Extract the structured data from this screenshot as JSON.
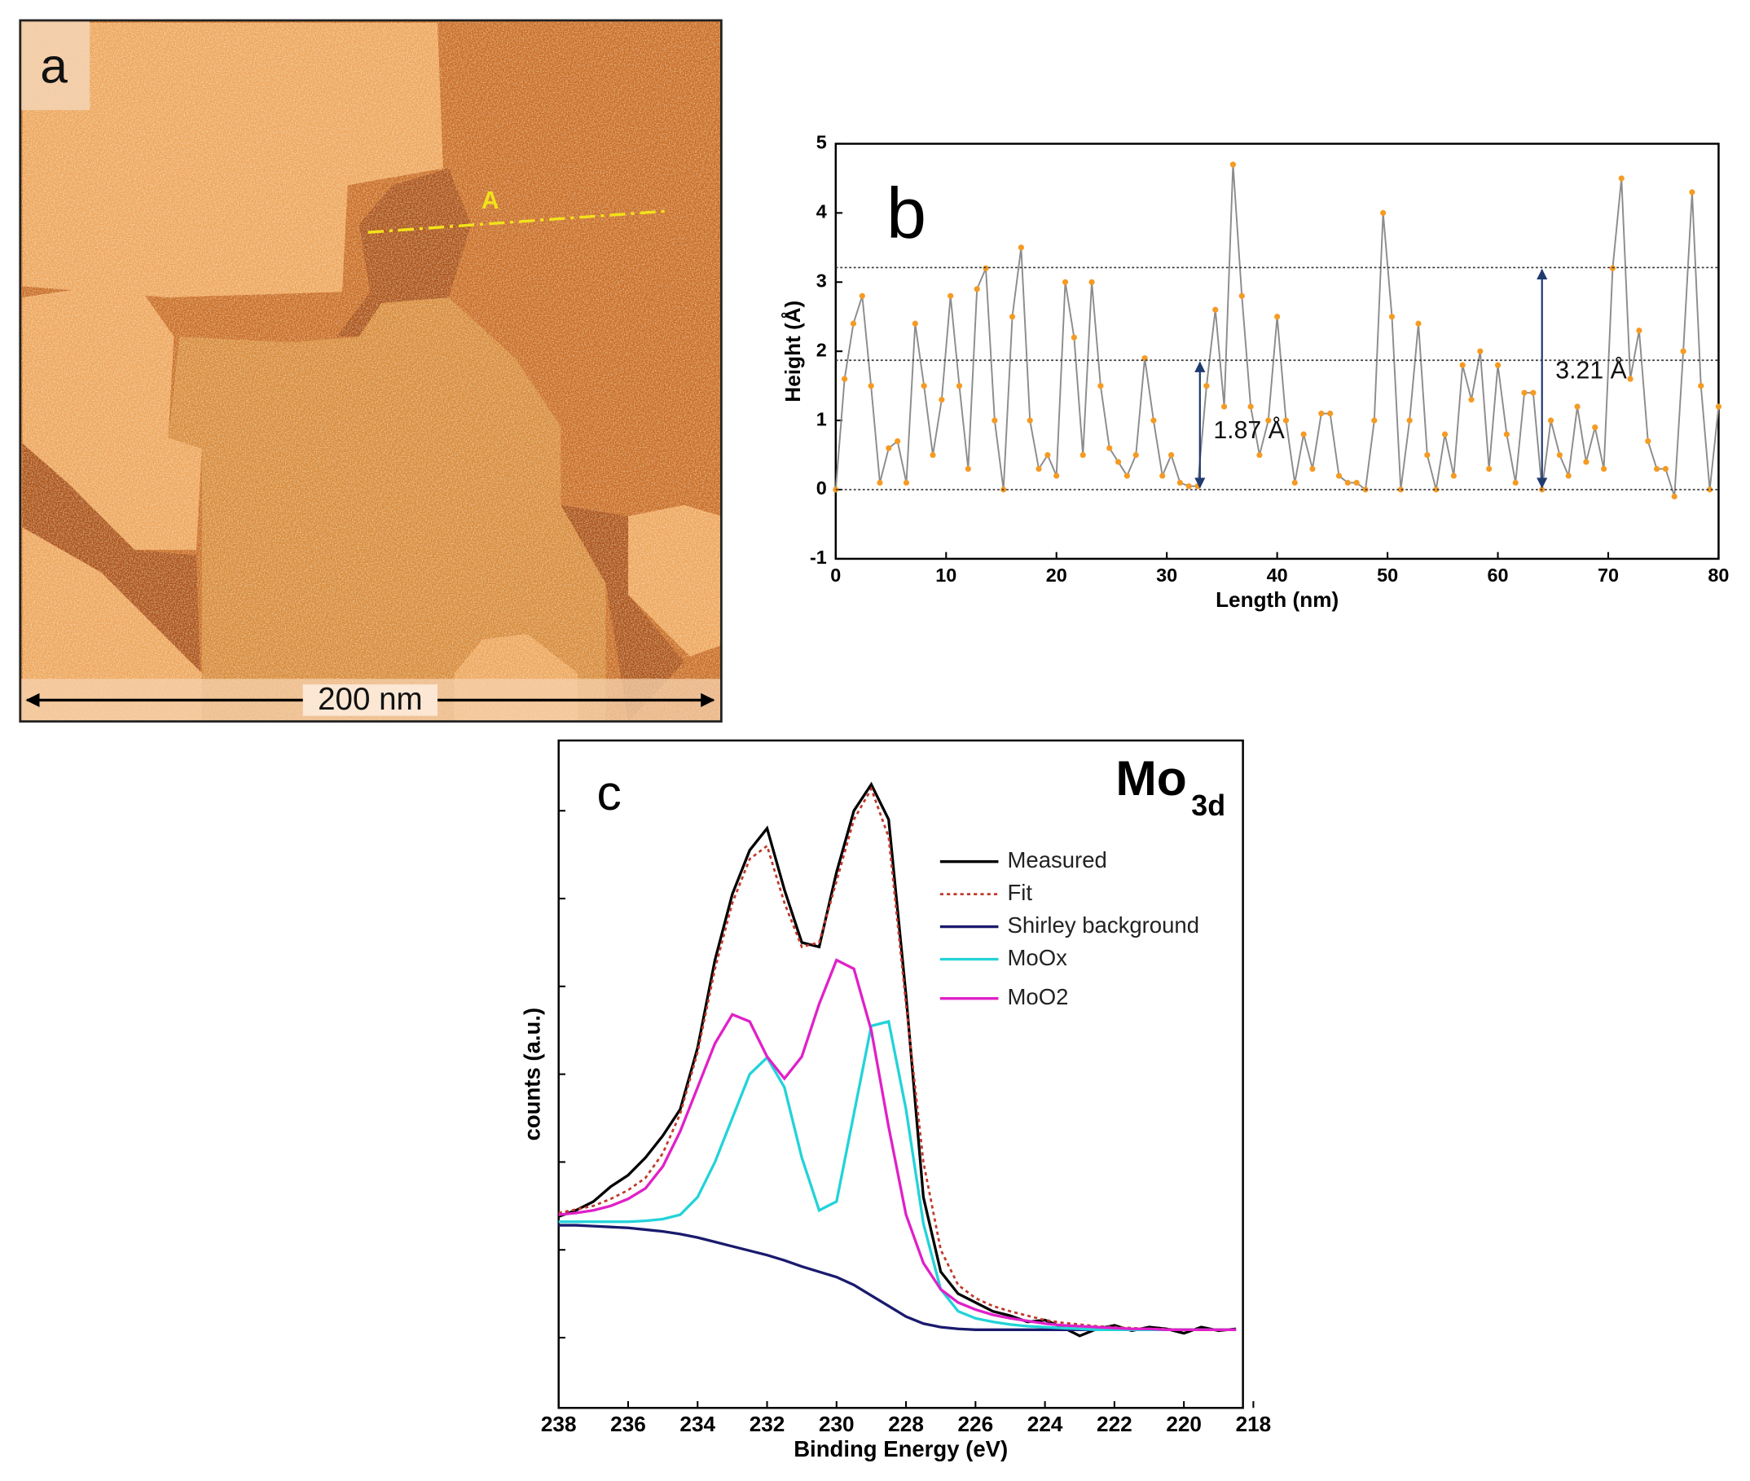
{
  "panel_a": {
    "label": "a",
    "scale_bar": "200 nm",
    "line_label": "A"
  },
  "chart_data": [
    {
      "type": "line",
      "title": "b",
      "xlabel": "Length (nm)",
      "ylabel": "Height (Å)",
      "x": [
        0,
        0.8,
        1.6,
        2.4,
        3.2,
        4,
        4.8,
        5.6,
        6.4,
        7.2,
        8,
        8.8,
        9.6,
        10.4,
        11.2,
        12,
        12.8,
        13.6,
        14.4,
        15.2,
        16,
        16.8,
        17.6,
        18.4,
        19.2,
        20,
        20.8,
        21.6,
        22.4,
        23.2,
        24,
        24.8,
        25.6,
        26.4,
        27.2,
        28,
        28.8,
        29.6,
        30.4,
        31.2,
        32,
        32.8,
        33.6,
        34.4,
        35.2,
        36,
        36.8,
        37.6,
        38.4,
        39.2,
        40,
        40.8,
        41.6,
        42.4,
        43.2,
        44,
        44.8,
        45.6,
        46.4,
        47.2,
        48,
        48.8,
        49.6,
        50.4,
        51.2,
        52,
        52.8,
        53.6,
        54.4,
        55.2,
        56,
        56.8,
        57.6,
        58.4,
        59.2,
        60,
        60.8,
        61.6,
        62.4,
        63.2,
        64,
        64.8,
        65.6,
        66.4,
        67.2,
        68,
        68.8,
        69.6,
        70.4,
        71.2,
        72,
        72.8,
        73.6,
        74.4,
        75.2,
        76,
        76.8,
        77.6,
        78.4,
        79.2,
        80
      ],
      "series": [
        {
          "color": "#8c8c8c",
          "marker_color": "#f59a23",
          "markers": true,
          "values": [
            0,
            1.6,
            2.4,
            2.8,
            1.5,
            0.1,
            0.6,
            0.7,
            0.1,
            2.4,
            1.5,
            0.5,
            1.3,
            2.8,
            1.5,
            0.3,
            2.9,
            3.2,
            1.0,
            0,
            2.5,
            3.5,
            1.0,
            0.3,
            0.5,
            0.2,
            3.0,
            2.2,
            0.5,
            3.0,
            1.5,
            0.6,
            0.4,
            0.2,
            0.5,
            1.9,
            1.0,
            0.2,
            0.5,
            0.1,
            0.05,
            0.05,
            1.5,
            2.6,
            1.2,
            4.7,
            2.8,
            1.2,
            0.5,
            1.0,
            2.5,
            1.0,
            0.1,
            0.8,
            0.3,
            1.1,
            1.1,
            0.2,
            0.1,
            0.1,
            0,
            1.0,
            4.0,
            2.5,
            0,
            1.0,
            2.4,
            0.5,
            0,
            0.8,
            0.2,
            1.8,
            1.3,
            2.0,
            0.3,
            1.8,
            0.8,
            0.1,
            1.4,
            1.4,
            0,
            1.0,
            0.5,
            0.2,
            1.2,
            0.4,
            0.9,
            0.3,
            3.2,
            4.5,
            1.6,
            2.3,
            0.7,
            0.3,
            0.3,
            -0.1,
            2.0,
            4.3,
            1.5,
            0,
            1.2
          ]
        }
      ],
      "xlim": [
        0,
        80
      ],
      "ylim": [
        -1,
        5
      ],
      "xticks": [
        0,
        10,
        20,
        30,
        40,
        50,
        60,
        70,
        80
      ],
      "yticks": [
        -1,
        0,
        1,
        2,
        3,
        4,
        5
      ],
      "annotations": [
        {
          "text": "1.87 Å",
          "x": 33,
          "value": 1.87
        },
        {
          "text": "3.21 Å",
          "x": 64,
          "value": 3.21
        }
      ],
      "annotation_color": "#1f3a6e"
    },
    {
      "type": "line",
      "title": "Mo",
      "title_subscript": "3d",
      "panel_label": "c",
      "xlabel": "Binding Energy (eV)",
      "ylabel": "counts (a.u.)",
      "x": [
        238,
        237.5,
        237,
        236.5,
        236,
        235.5,
        235,
        234.5,
        234,
        233.5,
        233,
        232.5,
        232,
        231.5,
        231,
        230.5,
        230,
        229.5,
        229,
        228.5,
        228,
        227.5,
        227,
        226.5,
        226,
        225.5,
        225,
        224.5,
        224,
        223.5,
        223,
        222.5,
        222,
        221.5,
        221,
        220.5,
        220,
        219.5,
        219,
        218.5
      ],
      "series": [
        {
          "name": "Measured",
          "color": "#000000",
          "values": [
            1.38,
            1.45,
            1.55,
            1.72,
            1.85,
            2.05,
            2.3,
            2.6,
            3.3,
            4.3,
            5.05,
            5.55,
            5.8,
            5.1,
            4.5,
            4.45,
            5.3,
            6.0,
            6.3,
            5.9,
            3.9,
            1.6,
            0.75,
            0.5,
            0.4,
            0.3,
            0.25,
            0.18,
            0.2,
            0.12,
            0.02,
            0.1,
            0.14,
            0.08,
            0.12,
            0.1,
            0.05,
            0.12,
            0.08,
            0.1
          ]
        },
        {
          "name": "Fit",
          "color": "#c0392b",
          "dash": "3,3",
          "values": [
            1.42,
            1.46,
            1.5,
            1.58,
            1.68,
            1.82,
            2.1,
            2.55,
            3.25,
            4.2,
            4.95,
            5.45,
            5.6,
            4.95,
            4.45,
            4.5,
            5.2,
            5.9,
            6.25,
            5.7,
            3.8,
            2.0,
            1.0,
            0.6,
            0.45,
            0.36,
            0.3,
            0.25,
            0.2,
            0.17,
            0.15,
            0.13,
            0.12,
            0.11,
            0.1,
            0.1,
            0.09,
            0.09,
            0.09,
            0.09
          ]
        },
        {
          "name": "Shirley background",
          "color": "#1a1a6e",
          "values": [
            1.28,
            1.28,
            1.27,
            1.26,
            1.25,
            1.23,
            1.21,
            1.18,
            1.14,
            1.09,
            1.04,
            0.99,
            0.94,
            0.88,
            0.81,
            0.75,
            0.69,
            0.6,
            0.48,
            0.36,
            0.24,
            0.16,
            0.12,
            0.1,
            0.09,
            0.09,
            0.09,
            0.09,
            0.09,
            0.09,
            0.09,
            0.09,
            0.09,
            0.09,
            0.09,
            0.09,
            0.09,
            0.09,
            0.09,
            0.09
          ]
        },
        {
          "name": "MoOx",
          "color": "#22d3d8",
          "values": [
            1.32,
            1.32,
            1.32,
            1.32,
            1.32,
            1.33,
            1.35,
            1.4,
            1.6,
            2.0,
            2.5,
            3.0,
            3.19,
            2.85,
            2.05,
            1.45,
            1.55,
            2.55,
            3.55,
            3.6,
            2.6,
            1.3,
            0.55,
            0.3,
            0.22,
            0.18,
            0.15,
            0.13,
            0.12,
            0.11,
            0.1,
            0.09,
            0.09,
            0.09,
            0.09,
            0.09,
            0.09,
            0.09,
            0.09,
            0.09
          ]
        },
        {
          "name": "MoO2",
          "color": "#e020c8",
          "values": [
            1.4,
            1.42,
            1.45,
            1.5,
            1.58,
            1.7,
            1.95,
            2.35,
            2.85,
            3.35,
            3.68,
            3.6,
            3.2,
            2.95,
            3.2,
            3.8,
            4.3,
            4.2,
            3.5,
            2.4,
            1.4,
            0.85,
            0.55,
            0.4,
            0.32,
            0.26,
            0.22,
            0.19,
            0.16,
            0.14,
            0.13,
            0.12,
            0.11,
            0.1,
            0.1,
            0.09,
            0.09,
            0.09,
            0.09,
            0.09
          ]
        }
      ],
      "xlim": [
        238,
        218.3
      ],
      "ylim": [
        -0.8,
        6.8
      ],
      "xticks": [
        238,
        236,
        234,
        232,
        230,
        228,
        226,
        224,
        222,
        220,
        218
      ],
      "yticks": [
        0,
        1,
        2,
        3,
        4,
        5,
        6
      ],
      "ytick_labels": false
    }
  ]
}
